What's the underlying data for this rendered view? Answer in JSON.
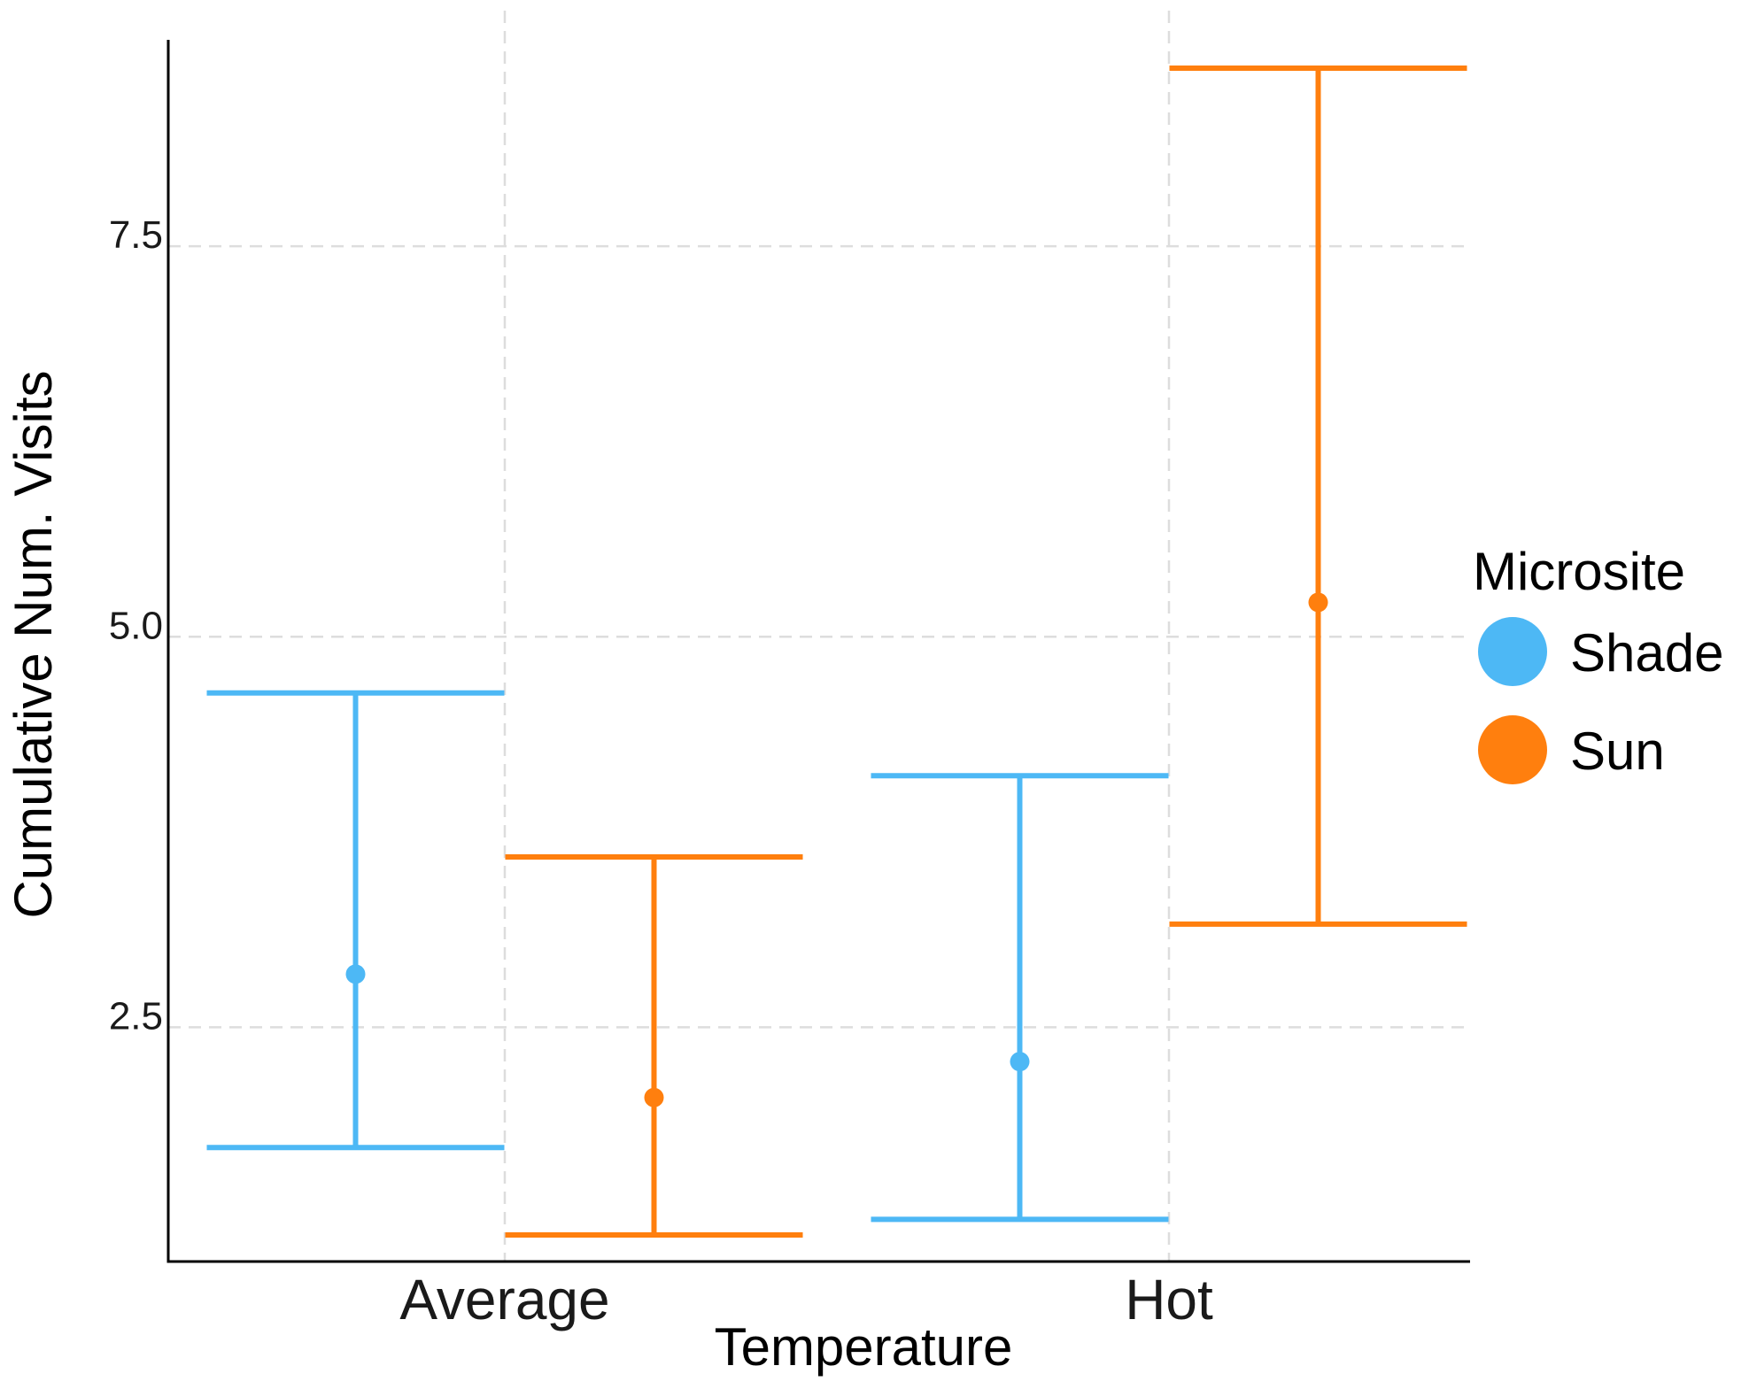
{
  "chart_data": {
    "type": "errorbar",
    "title": "",
    "xlabel": "Temperature",
    "ylabel": "Cumulative Num. Visits",
    "categories": [
      "Average",
      "Hot"
    ],
    "yticks": [
      "2.5",
      "5.0",
      "7.5"
    ],
    "ylim": [
      1.0,
      8.85
    ],
    "grid": "dashed",
    "legend": {
      "title": "Microsite",
      "position": "right"
    },
    "series": [
      {
        "name": "Shade",
        "color": "#4db8f5",
        "points": [
          {
            "x": "Average",
            "y": 2.84,
            "lower": 1.73,
            "upper": 4.64
          },
          {
            "x": "Hot",
            "y": 2.28,
            "lower": 1.27,
            "upper": 4.11
          }
        ]
      },
      {
        "name": "Sun",
        "color": "#ff7f0e",
        "points": [
          {
            "x": "Average",
            "y": 2.05,
            "lower": 1.17,
            "upper": 3.59
          },
          {
            "x": "Hot",
            "y": 5.22,
            "lower": 3.16,
            "upper": 8.64
          }
        ]
      }
    ]
  }
}
